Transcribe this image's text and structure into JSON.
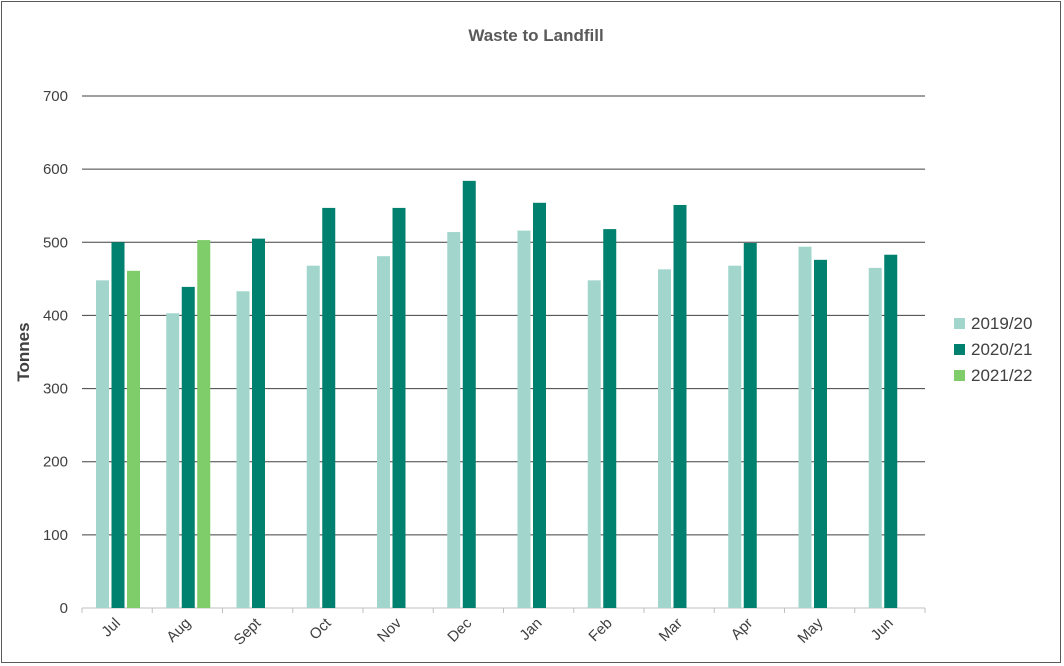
{
  "chart_data": {
    "type": "bar",
    "title": "Waste to Landfill",
    "xlabel": "",
    "ylabel": "Tonnes",
    "ylim": [
      0,
      700
    ],
    "yticks": [
      0,
      100,
      200,
      300,
      400,
      500,
      600,
      700
    ],
    "grid": true,
    "legend_position": "right",
    "categories": [
      "Jul",
      "Aug",
      "Sept",
      "Oct",
      "Nov",
      "Dec",
      "Jan",
      "Feb",
      "Mar",
      "Apr",
      "May",
      "Jun"
    ],
    "series": [
      {
        "name": "2019/20",
        "color": "#a2d6cc",
        "values": [
          448,
          403,
          433,
          468,
          481,
          514,
          516,
          448,
          463,
          468,
          494,
          465
        ]
      },
      {
        "name": "2020/21",
        "color": "#00806e",
        "values": [
          500,
          439,
          505,
          547,
          547,
          584,
          554,
          518,
          551,
          499,
          476,
          483
        ]
      },
      {
        "name": "2021/22",
        "color": "#7fcc6a",
        "values": [
          461,
          503,
          null,
          null,
          null,
          null,
          null,
          null,
          null,
          null,
          null,
          null
        ]
      }
    ]
  }
}
